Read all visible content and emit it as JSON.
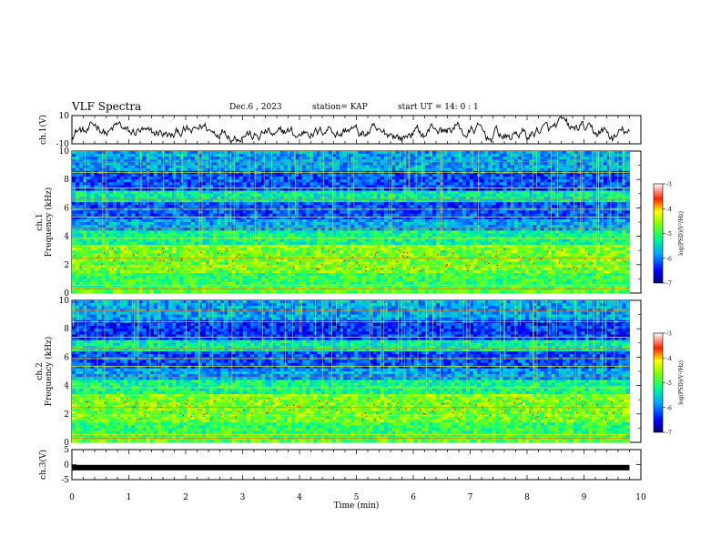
{
  "header": {
    "title": "VLF Spectra",
    "date": "Dec.6 , 2023",
    "station": "station= KAP",
    "start": "start UT = 14: 0 : 1"
  },
  "chart_data": [
    {
      "type": "line",
      "ylabel": "ch.1(V)",
      "ylim": [
        -10,
        10
      ],
      "yticks": [
        "10",
        "-10"
      ],
      "xlim": [
        0,
        10
      ],
      "x_extent": 9.8,
      "description_trace": "noisy waveform oscillating around ~ -2 V"
    },
    {
      "type": "heatmap",
      "ylabel_top": "ch.1",
      "ylabel": "Frequency (kHz)",
      "ylim": [
        0,
        10
      ],
      "yticks": [
        "0",
        "2",
        "4",
        "6",
        "8",
        "10"
      ],
      "xlim": [
        0,
        10
      ],
      "x_extent": 9.8,
      "colorbar": {
        "label": "log(PSD)(V²/Hz)",
        "range": [
          -7,
          -3
        ],
        "ticks": [
          "-3",
          "-4",
          "-5",
          "-6",
          "-7"
        ]
      }
    },
    {
      "type": "heatmap",
      "ylabel_top": "ch.2",
      "ylabel": "Frequency (kHz)",
      "ylim": [
        0,
        10
      ],
      "yticks": [
        "0",
        "2",
        "4",
        "6",
        "8",
        "10"
      ],
      "xlim": [
        0,
        10
      ],
      "x_extent": 9.8,
      "colorbar": {
        "label": "log(PSD)(V²/Hz)",
        "range": [
          -7,
          -3
        ],
        "ticks": [
          "-3",
          "-4",
          "-5",
          "-6",
          "-7"
        ]
      }
    },
    {
      "type": "line",
      "ylabel": "ch.3(V)",
      "ylim": [
        -5,
        5
      ],
      "yticks": [
        "5",
        "0",
        "-5"
      ],
      "xlim": [
        0,
        10
      ],
      "x_extent": 9.8,
      "constant_value": -1
    }
  ],
  "xaxis": {
    "label": "Time (min)",
    "ticks": [
      "0",
      "1",
      "2",
      "3",
      "4",
      "5",
      "6",
      "7",
      "8",
      "9",
      "10"
    ]
  }
}
